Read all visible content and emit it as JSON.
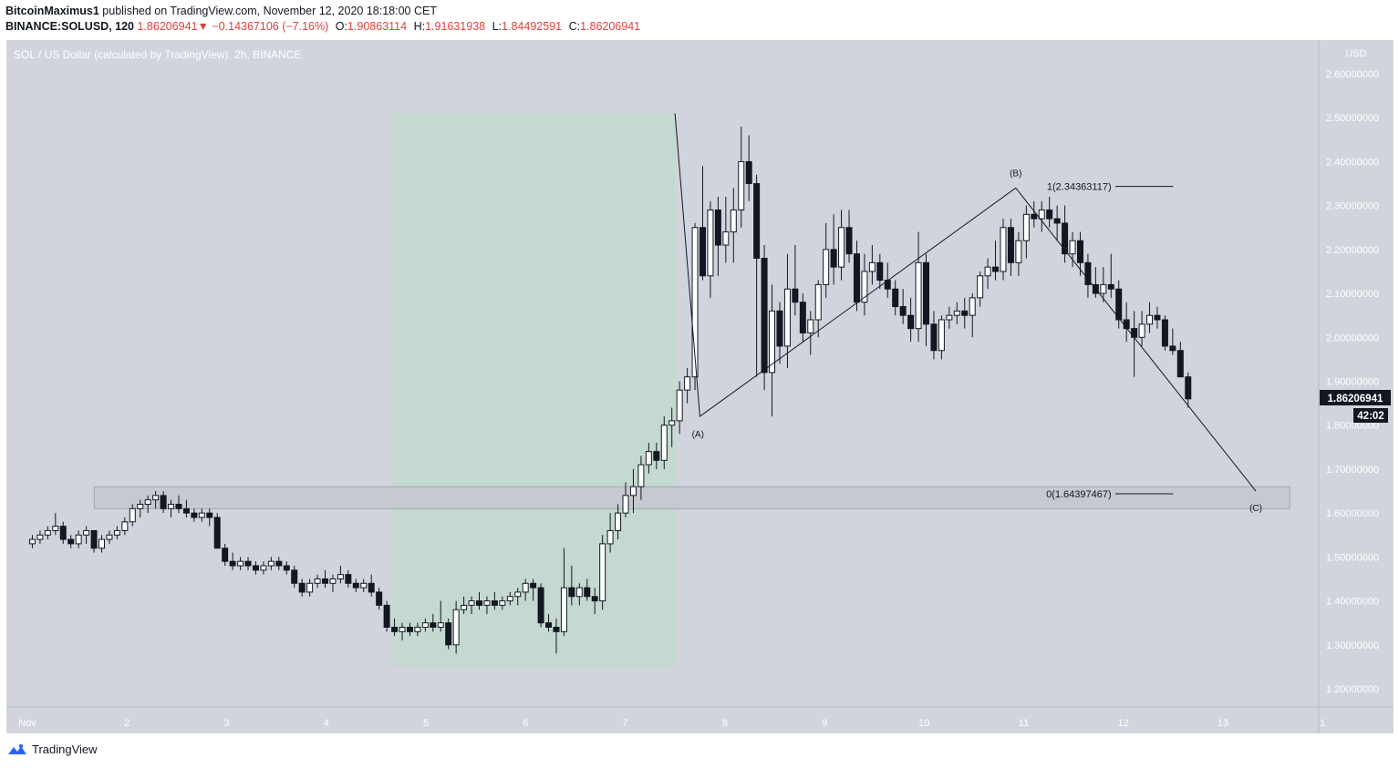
{
  "header": {
    "author": "BitcoinMaximus1",
    "published_text": "published on TradingView.com, November 12, 2020 18:18:00 CET",
    "symbol": "BINANCE:SOLUSD, 120",
    "last_price": "1.86206941",
    "change_arrow": "▼",
    "change": "−0.14367106 (−7.16%)",
    "open_label": "O:",
    "open": "1.90863114",
    "high_label": "H:",
    "high": "1.91631938",
    "low_label": "L:",
    "low": "1.84492591",
    "close_label": "C:",
    "close": "1.86206941"
  },
  "chart_title": "SOL / US Dollar (calculated by TradingView), 2h, BINANCE",
  "price_badge": {
    "value": "1.86206941",
    "countdown": "42:02"
  },
  "footer": {
    "logo_text": "TradingView"
  },
  "colors": {
    "background": "#d1d4dc",
    "bull_fill": "#ffffff",
    "bear_fill": "#131722",
    "highlight_zone": "#c4d9cf",
    "support_band": "#c4c7cf"
  },
  "chart_data": {
    "type": "candlestick",
    "title": "SOL / US Dollar (calculated by TradingView), 2h, BINANCE",
    "currency": "USD",
    "ylim": [
      1.15,
      2.68
    ],
    "y_ticks": [
      "2.60000000",
      "2.50000000",
      "2.40000000",
      "2.30000000",
      "2.20000000",
      "2.10000000",
      "2.00000000",
      "1.90000000",
      "1.80000000",
      "1.70000000",
      "1.60000000",
      "1.50000000",
      "1.40000000",
      "1.30000000",
      "1.20000000"
    ],
    "x_ticks": [
      "Nov",
      "2",
      "3",
      "4",
      "5",
      "6",
      "7",
      "8",
      "9",
      "10",
      "11",
      "12",
      "13",
      "1"
    ],
    "annotations": {
      "wave_labels": [
        "(A)",
        "(B)",
        "(C)"
      ],
      "fib_1_label": "1(2.34363117)",
      "fib_0_label": "0(1.64397467)",
      "fib_1_price": 2.34363117,
      "fib_0_price": 1.64397467,
      "support_zone": [
        1.61,
        1.66
      ],
      "highlight_zone": {
        "from": "Nov 4",
        "to": "Nov 7",
        "price_range": [
          1.25,
          2.51
        ]
      }
    },
    "wave_path": [
      {
        "point": "start",
        "date": "Nov 7",
        "price": 2.51
      },
      {
        "point": "(A)",
        "date": "Nov 7",
        "price": 1.82
      },
      {
        "point": "(B)",
        "date": "Nov 10",
        "price": 2.34
      },
      {
        "point": "(C)",
        "date": "Nov 13",
        "price": 1.65
      }
    ],
    "candles": [
      [
        1.53,
        1.55,
        1.52,
        1.54
      ],
      [
        1.54,
        1.56,
        1.53,
        1.55
      ],
      [
        1.55,
        1.57,
        1.54,
        1.56
      ],
      [
        1.56,
        1.6,
        1.55,
        1.57
      ],
      [
        1.57,
        1.58,
        1.53,
        1.54
      ],
      [
        1.54,
        1.55,
        1.52,
        1.53
      ],
      [
        1.53,
        1.56,
        1.52,
        1.55
      ],
      [
        1.55,
        1.57,
        1.53,
        1.56
      ],
      [
        1.56,
        1.56,
        1.51,
        1.52
      ],
      [
        1.52,
        1.55,
        1.51,
        1.54
      ],
      [
        1.54,
        1.56,
        1.53,
        1.55
      ],
      [
        1.55,
        1.57,
        1.54,
        1.56
      ],
      [
        1.56,
        1.59,
        1.55,
        1.58
      ],
      [
        1.58,
        1.62,
        1.57,
        1.61
      ],
      [
        1.61,
        1.63,
        1.59,
        1.62
      ],
      [
        1.62,
        1.64,
        1.6,
        1.63
      ],
      [
        1.63,
        1.65,
        1.61,
        1.64
      ],
      [
        1.64,
        1.65,
        1.6,
        1.61
      ],
      [
        1.61,
        1.63,
        1.59,
        1.62
      ],
      [
        1.62,
        1.64,
        1.6,
        1.61
      ],
      [
        1.61,
        1.63,
        1.59,
        1.6
      ],
      [
        1.6,
        1.61,
        1.58,
        1.59
      ],
      [
        1.59,
        1.61,
        1.58,
        1.6
      ],
      [
        1.6,
        1.61,
        1.57,
        1.59
      ],
      [
        1.59,
        1.6,
        1.52,
        1.52
      ],
      [
        1.52,
        1.53,
        1.48,
        1.49
      ],
      [
        1.49,
        1.51,
        1.47,
        1.48
      ],
      [
        1.48,
        1.5,
        1.47,
        1.49
      ],
      [
        1.49,
        1.5,
        1.47,
        1.48
      ],
      [
        1.48,
        1.49,
        1.46,
        1.47
      ],
      [
        1.47,
        1.49,
        1.46,
        1.48
      ],
      [
        1.48,
        1.5,
        1.47,
        1.49
      ],
      [
        1.49,
        1.5,
        1.47,
        1.48
      ],
      [
        1.48,
        1.49,
        1.46,
        1.47
      ],
      [
        1.47,
        1.48,
        1.43,
        1.44
      ],
      [
        1.44,
        1.45,
        1.41,
        1.42
      ],
      [
        1.42,
        1.45,
        1.41,
        1.44
      ],
      [
        1.44,
        1.46,
        1.43,
        1.45
      ],
      [
        1.45,
        1.47,
        1.43,
        1.44
      ],
      [
        1.44,
        1.46,
        1.42,
        1.45
      ],
      [
        1.45,
        1.48,
        1.44,
        1.46
      ],
      [
        1.46,
        1.47,
        1.43,
        1.44
      ],
      [
        1.44,
        1.45,
        1.42,
        1.43
      ],
      [
        1.43,
        1.45,
        1.42,
        1.44
      ],
      [
        1.44,
        1.46,
        1.41,
        1.42
      ],
      [
        1.42,
        1.43,
        1.38,
        1.39
      ],
      [
        1.39,
        1.4,
        1.33,
        1.34
      ],
      [
        1.34,
        1.36,
        1.32,
        1.33
      ],
      [
        1.33,
        1.35,
        1.31,
        1.34
      ],
      [
        1.34,
        1.35,
        1.32,
        1.33
      ],
      [
        1.33,
        1.35,
        1.32,
        1.34
      ],
      [
        1.34,
        1.36,
        1.33,
        1.35
      ],
      [
        1.35,
        1.37,
        1.33,
        1.34
      ],
      [
        1.34,
        1.4,
        1.33,
        1.35
      ],
      [
        1.35,
        1.36,
        1.29,
        1.3
      ],
      [
        1.3,
        1.4,
        1.28,
        1.38
      ],
      [
        1.38,
        1.41,
        1.37,
        1.39
      ],
      [
        1.39,
        1.41,
        1.37,
        1.4
      ],
      [
        1.4,
        1.42,
        1.38,
        1.39
      ],
      [
        1.39,
        1.41,
        1.37,
        1.4
      ],
      [
        1.4,
        1.42,
        1.38,
        1.39
      ],
      [
        1.39,
        1.41,
        1.38,
        1.4
      ],
      [
        1.4,
        1.42,
        1.39,
        1.41
      ],
      [
        1.41,
        1.43,
        1.39,
        1.42
      ],
      [
        1.42,
        1.45,
        1.4,
        1.44
      ],
      [
        1.44,
        1.45,
        1.4,
        1.43
      ],
      [
        1.43,
        1.44,
        1.34,
        1.35
      ],
      [
        1.35,
        1.37,
        1.33,
        1.34
      ],
      [
        1.34,
        1.36,
        1.28,
        1.33
      ],
      [
        1.33,
        1.52,
        1.32,
        1.43
      ],
      [
        1.43,
        1.48,
        1.39,
        1.41
      ],
      [
        1.41,
        1.44,
        1.39,
        1.43
      ],
      [
        1.43,
        1.45,
        1.4,
        1.41
      ],
      [
        1.41,
        1.43,
        1.37,
        1.4
      ],
      [
        1.4,
        1.55,
        1.38,
        1.53
      ],
      [
        1.53,
        1.6,
        1.51,
        1.56
      ],
      [
        1.56,
        1.62,
        1.54,
        1.6
      ],
      [
        1.6,
        1.67,
        1.59,
        1.64
      ],
      [
        1.64,
        1.7,
        1.6,
        1.66
      ],
      [
        1.66,
        1.73,
        1.63,
        1.71
      ],
      [
        1.71,
        1.76,
        1.69,
        1.74
      ],
      [
        1.74,
        1.76,
        1.7,
        1.72
      ],
      [
        1.72,
        1.82,
        1.7,
        1.8
      ],
      [
        1.8,
        1.84,
        1.75,
        1.81
      ],
      [
        1.81,
        1.9,
        1.78,
        1.88
      ],
      [
        1.88,
        1.93,
        1.85,
        1.91
      ],
      [
        1.91,
        2.26,
        1.88,
        2.25
      ],
      [
        2.25,
        2.39,
        2.13,
        2.14
      ],
      [
        2.14,
        2.31,
        2.09,
        2.29
      ],
      [
        2.29,
        2.32,
        2.14,
        2.21
      ],
      [
        2.21,
        2.32,
        2.17,
        2.24
      ],
      [
        2.24,
        2.34,
        2.17,
        2.29
      ],
      [
        2.29,
        2.48,
        2.25,
        2.4
      ],
      [
        2.4,
        2.46,
        2.31,
        2.35
      ],
      [
        2.35,
        2.37,
        1.91,
        2.18
      ],
      [
        2.18,
        2.21,
        1.88,
        1.92
      ],
      [
        1.92,
        2.12,
        1.82,
        2.06
      ],
      [
        2.06,
        2.08,
        1.94,
        1.98
      ],
      [
        1.98,
        2.19,
        1.93,
        2.11
      ],
      [
        2.11,
        2.21,
        2.05,
        2.08
      ],
      [
        2.08,
        2.1,
        1.99,
        2.01
      ],
      [
        2.01,
        2.06,
        1.96,
        2.04
      ],
      [
        2.04,
        2.13,
        2.0,
        2.12
      ],
      [
        2.12,
        2.26,
        2.09,
        2.2
      ],
      [
        2.2,
        2.28,
        2.12,
        2.16
      ],
      [
        2.16,
        2.29,
        2.13,
        2.25
      ],
      [
        2.25,
        2.29,
        2.17,
        2.19
      ],
      [
        2.19,
        2.22,
        2.06,
        2.08
      ],
      [
        2.08,
        2.19,
        2.05,
        2.15
      ],
      [
        2.15,
        2.21,
        2.12,
        2.17
      ],
      [
        2.17,
        2.19,
        2.11,
        2.13
      ],
      [
        2.13,
        2.17,
        2.09,
        2.11
      ],
      [
        2.11,
        2.13,
        2.05,
        2.07
      ],
      [
        2.07,
        2.11,
        2.03,
        2.05
      ],
      [
        2.05,
        2.09,
        1.99,
        2.02
      ],
      [
        2.02,
        2.24,
        1.99,
        2.17
      ],
      [
        2.17,
        2.19,
        1.98,
        2.03
      ],
      [
        2.03,
        2.06,
        1.95,
        1.97
      ],
      [
        1.97,
        2.05,
        1.95,
        2.04
      ],
      [
        2.04,
        2.07,
        2.02,
        2.05
      ],
      [
        2.05,
        2.08,
        2.03,
        2.06
      ],
      [
        2.06,
        2.09,
        2.02,
        2.05
      ],
      [
        2.05,
        2.1,
        2.0,
        2.09
      ],
      [
        2.09,
        2.15,
        2.07,
        2.14
      ],
      [
        2.14,
        2.18,
        2.11,
        2.16
      ],
      [
        2.16,
        2.22,
        2.13,
        2.15
      ],
      [
        2.15,
        2.27,
        2.13,
        2.25
      ],
      [
        2.25,
        2.27,
        2.14,
        2.17
      ],
      [
        2.17,
        2.24,
        2.14,
        2.22
      ],
      [
        2.22,
        2.3,
        2.18,
        2.28
      ],
      [
        2.28,
        2.31,
        2.25,
        2.27
      ],
      [
        2.27,
        2.31,
        2.24,
        2.29
      ],
      [
        2.29,
        2.32,
        2.25,
        2.27
      ],
      [
        2.27,
        2.3,
        2.22,
        2.26
      ],
      [
        2.26,
        2.3,
        2.17,
        2.19
      ],
      [
        2.19,
        2.24,
        2.16,
        2.22
      ],
      [
        2.22,
        2.24,
        2.14,
        2.17
      ],
      [
        2.17,
        2.19,
        2.09,
        2.12
      ],
      [
        2.12,
        2.16,
        2.09,
        2.1
      ],
      [
        2.1,
        2.16,
        2.08,
        2.12
      ],
      [
        2.12,
        2.19,
        2.09,
        2.11
      ],
      [
        2.11,
        2.13,
        2.02,
        2.04
      ],
      [
        2.04,
        2.08,
        1.99,
        2.02
      ],
      [
        2.02,
        2.06,
        1.91,
        2.0
      ],
      [
        2.0,
        2.06,
        1.98,
        2.03
      ],
      [
        2.03,
        2.08,
        2.01,
        2.05
      ],
      [
        2.05,
        2.07,
        2.02,
        2.04
      ],
      [
        2.04,
        2.05,
        1.97,
        1.98
      ],
      [
        1.98,
        2.02,
        1.96,
        1.97
      ],
      [
        1.97,
        1.99,
        1.91,
        1.91
      ],
      [
        1.91,
        1.92,
        1.84,
        1.86
      ]
    ]
  }
}
